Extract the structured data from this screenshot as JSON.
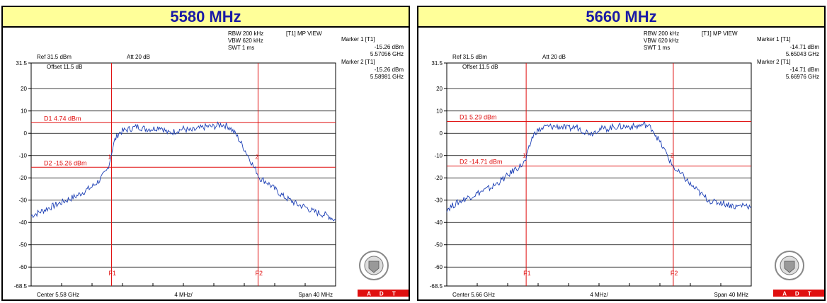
{
  "chart_data": [
    {
      "type": "line",
      "title": "5580 MHz",
      "center": "Center 5.58 GHz",
      "span": "Span 40 MHz",
      "div": "4 MHz/",
      "rbw": "RBW 200 kHz",
      "vbw": "VBW 620 kHz",
      "swt": "SWT 1 ms",
      "mode": "[T1] MP VIEW",
      "ref": "Ref 31.5 dBm",
      "att": "Att  20 dB",
      "offset": "Offset 11.5 dB",
      "markers": [
        {
          "label": "Marker 1 [T1]",
          "level": "-15.26 dBm",
          "freq": "5.57056 GHz"
        },
        {
          "label": "Marker 2 [T1]",
          "level": "-15.26 dBm",
          "freq": "5.58981 GHz"
        }
      ],
      "d1": {
        "label": "D1 4.74 dBm",
        "value": 4.74
      },
      "d2": {
        "label": "D2 -15.26 dBm",
        "value": -15.26
      },
      "f1": {
        "label": "F1",
        "x_mhz": 5570.56
      },
      "f2": {
        "label": "F2",
        "x_mhz": 5589.81
      },
      "ylim": [
        -68.5,
        31.5
      ],
      "xlim_mhz": [
        5560,
        5600
      ],
      "ytick_labels": [
        "31.5",
        "20",
        "10",
        "0",
        "-10",
        "-20",
        "-30",
        "-40",
        "-50",
        "-60",
        "-68.5"
      ],
      "trace_x_offset_mhz": [
        0,
        2,
        4,
        6,
        8,
        9,
        9.9,
        10.3,
        10.6,
        11,
        11.5,
        12,
        13,
        14,
        15,
        16,
        17,
        18,
        19,
        20,
        21,
        22,
        23,
        24,
        25,
        26,
        27,
        28,
        28.8,
        29.2,
        29.6,
        30,
        31,
        32,
        33,
        34,
        35,
        36,
        37,
        38,
        39,
        40
      ],
      "trace_dbm": [
        -37,
        -34,
        -31,
        -28,
        -24,
        -21,
        -17,
        -13,
        -8,
        -3,
        0,
        1,
        2,
        3,
        2,
        2,
        3,
        0,
        1,
        2,
        1,
        2,
        3,
        3,
        4,
        3,
        -1,
        -7,
        -12,
        -15,
        -17,
        -20,
        -22,
        -25,
        -28,
        -30,
        -32,
        -33,
        -35,
        -36,
        -37,
        -39
      ],
      "logo_text": [
        "BUREAU VERITAS",
        "1828",
        "A D T"
      ]
    },
    {
      "type": "line",
      "title": "5660 MHz",
      "center": "Center 5.66 GHz",
      "span": "Span 40 MHz",
      "div": "4 MHz/",
      "rbw": "RBW 200 kHz",
      "vbw": "VBW 620 kHz",
      "swt": "SWT 1 ms",
      "mode": "[T1] MP VIEW",
      "ref": "Ref 31.5 dBm",
      "att": "Att  20 dB",
      "offset": "Offset 11.5 dB",
      "markers": [
        {
          "label": "Marker 1 [T1]",
          "level": "-14.71 dBm",
          "freq": "5.65043 GHz"
        },
        {
          "label": "Marker 2 [T1]",
          "level": "-14.71 dBm",
          "freq": "5.66976 GHz"
        }
      ],
      "d1": {
        "label": "D1 5.29 dBm",
        "value": 5.29
      },
      "d2": {
        "label": "D2 -14.71 dBm",
        "value": -14.71
      },
      "f1": {
        "label": "F1",
        "x_mhz": 5650.43
      },
      "f2": {
        "label": "F2",
        "x_mhz": 5669.76
      },
      "ylim": [
        -68.5,
        31.5
      ],
      "xlim_mhz": [
        5640,
        5680
      ],
      "ytick_labels": [
        "31.5",
        "20",
        "10",
        "0",
        "-10",
        "-20",
        "-30",
        "-40",
        "-50",
        "-60",
        "-68.5"
      ],
      "trace_x_offset_mhz": [
        0,
        2,
        4,
        6,
        8,
        9,
        10,
        10.4,
        10.8,
        11.2,
        11.8,
        12.5,
        13,
        14,
        15,
        16,
        17,
        18,
        19,
        20,
        21,
        22,
        23,
        24,
        25,
        26,
        27,
        28,
        29,
        29.4,
        29.8,
        30.2,
        31,
        32,
        33,
        34,
        35,
        36,
        37,
        38,
        39,
        40
      ],
      "trace_dbm": [
        -34,
        -30,
        -27,
        -24,
        -19,
        -16,
        -14,
        -12,
        -7,
        -2,
        1,
        2,
        3,
        3,
        3,
        2,
        3,
        1,
        0,
        2,
        2,
        3,
        3,
        3,
        3,
        4,
        2,
        -4,
        -10,
        -13,
        -15,
        -17,
        -19,
        -23,
        -26,
        -29,
        -31,
        -31,
        -32,
        -33,
        -32,
        -33
      ],
      "logo_text": [
        "BUREAU VERITAS",
        "1828",
        "A D T"
      ]
    }
  ]
}
